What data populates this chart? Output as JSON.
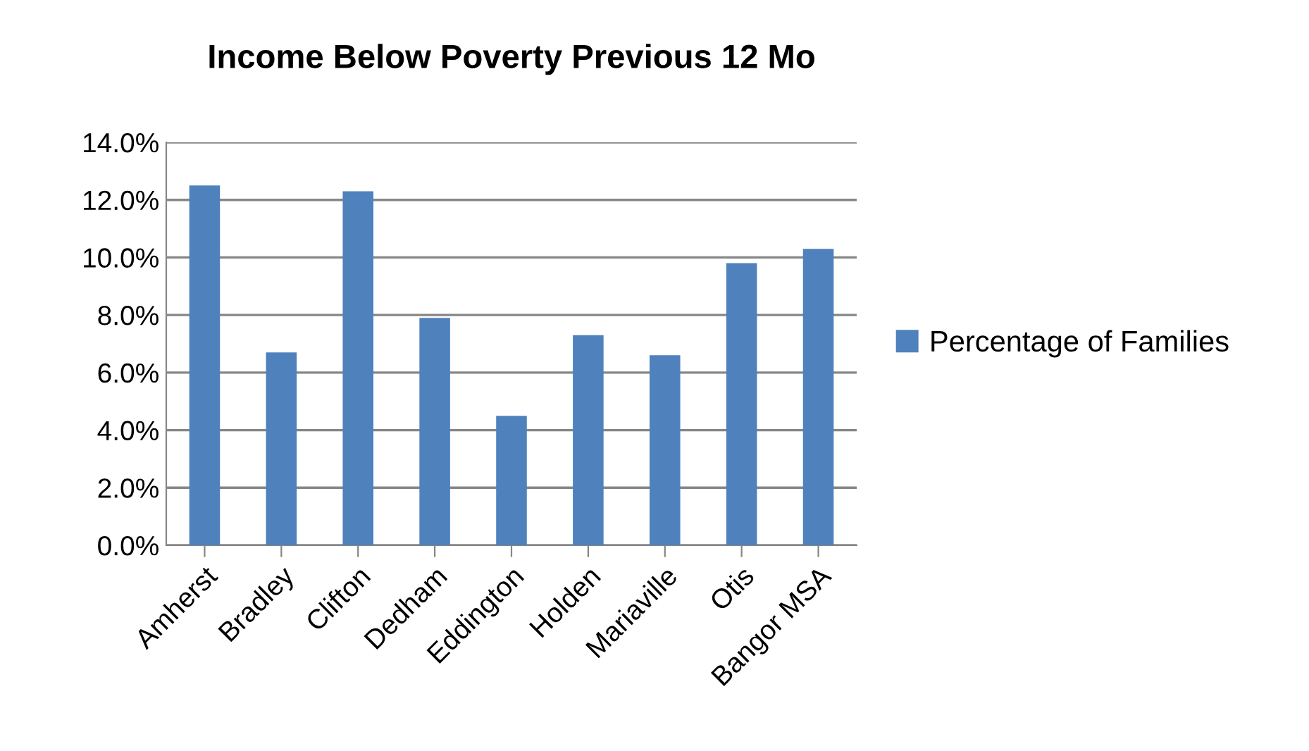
{
  "chart_data": {
    "type": "bar",
    "title": "Income Below Poverty Previous 12 Mo",
    "categories": [
      "Amherst",
      "Bradley",
      "Clifton",
      "Dedham",
      "Eddington",
      "Holden",
      "Mariaville",
      "Otis",
      "Bangor MSA"
    ],
    "series": [
      {
        "name": "Percentage of Families",
        "color": "#4f81bd",
        "values": [
          12.5,
          6.7,
          12.3,
          7.9,
          4.5,
          7.3,
          6.6,
          9.8,
          10.3
        ]
      }
    ],
    "ylim": [
      0,
      14
    ],
    "yticks": [
      {
        "value": 0,
        "label": "0.0%"
      },
      {
        "value": 2,
        "label": "2.0%"
      },
      {
        "value": 4,
        "label": "4.0%"
      },
      {
        "value": 6,
        "label": "6.0%"
      },
      {
        "value": 8,
        "label": "8.0%"
      },
      {
        "value": 10,
        "label": "10.0%"
      },
      {
        "value": 12,
        "label": "12.0%"
      },
      {
        "value": 14,
        "label": "14.0%"
      }
    ],
    "grid": "y",
    "legend": "right"
  }
}
